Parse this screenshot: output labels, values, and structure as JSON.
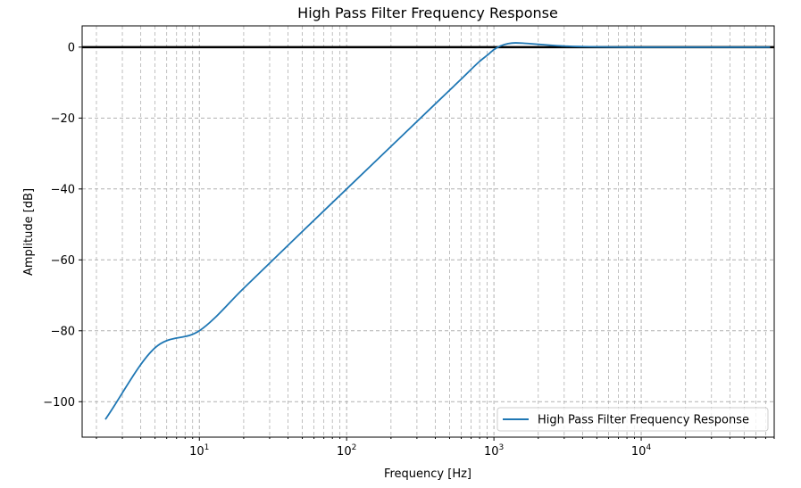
{
  "chart_data": {
    "type": "line",
    "title": "High Pass Filter Frequency Response",
    "xlabel": "Frequency [Hz]",
    "ylabel": "Amplitude [dB]",
    "xscale": "log",
    "xlim": [
      1.6,
      80000
    ],
    "ylim": [
      -110,
      6
    ],
    "xticks": [
      {
        "base": "10",
        "exp": "1",
        "value": 10
      },
      {
        "base": "10",
        "exp": "2",
        "value": 100
      },
      {
        "base": "10",
        "exp": "3",
        "value": 1000
      },
      {
        "base": "10",
        "exp": "4",
        "value": 10000
      }
    ],
    "yticks": [
      0,
      -20,
      -40,
      -60,
      -80,
      -100
    ],
    "ytick_labels": [
      "0",
      "−20",
      "−40",
      "−60",
      "−80",
      "−100"
    ],
    "grid": true,
    "grid_style": "dashed",
    "reference_line": {
      "y": 0,
      "color": "#000000"
    },
    "legend_position": "lower-right",
    "series": [
      {
        "name": "High Pass Filter Frequency Response",
        "color": "#1f77b4",
        "x": [
          2.3,
          5,
          10,
          20,
          50,
          100,
          200,
          400,
          600,
          800,
          900,
          1000,
          1100,
          1250,
          1400,
          1600,
          2000,
          2500,
          3000,
          4000,
          5000,
          7000,
          10000,
          20000,
          50000,
          75000
        ],
        "y": [
          -105,
          -84.8,
          -80,
          -68,
          -52,
          -40,
          -28,
          -16,
          -9,
          -4,
          -2.3,
          -0.7,
          0.3,
          1.0,
          1.2,
          1.1,
          0.8,
          0.5,
          0.3,
          0.15,
          0.08,
          0.03,
          0.0,
          0.0,
          0.0,
          0.0
        ]
      }
    ]
  }
}
